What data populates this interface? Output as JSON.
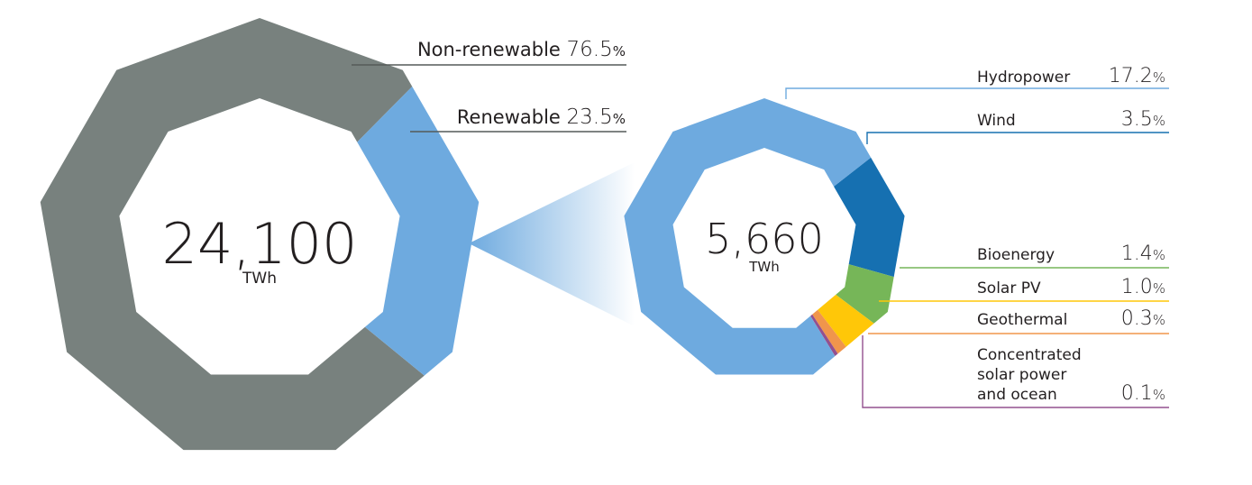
{
  "chart_data": [
    {
      "type": "pie",
      "center_value": "24,100",
      "center_unit": "TWh",
      "slices": [
        {
          "label": "Non-renewable",
          "value": 76.5,
          "value_text": "76.5",
          "unit": "%",
          "color": "#78817e"
        },
        {
          "label": "Renewable",
          "value": 23.5,
          "value_text": "23.5",
          "unit": "%",
          "color": "#6eaadf"
        }
      ]
    },
    {
      "type": "pie",
      "center_value": "5,660",
      "center_unit": "TWh",
      "slices": [
        {
          "label": "Hydropower",
          "value": 17.2,
          "value_text": "17.2",
          "unit": "%",
          "color": "#6eaadf"
        },
        {
          "label": "Wind",
          "value": 3.5,
          "value_text": "3.5",
          "unit": "%",
          "color": "#1670b1"
        },
        {
          "label": "Bioenergy",
          "value": 1.4,
          "value_text": "1.4",
          "unit": "%",
          "color": "#76b658"
        },
        {
          "label": "Solar PV",
          "value": 1.0,
          "value_text": "1.0",
          "unit": "%",
          "color": "#ffc708"
        },
        {
          "label": "Geothermal",
          "value": 0.3,
          "value_text": "0.3",
          "unit": "%",
          "color": "#f0954c"
        },
        {
          "label": "Concentrated solar power and ocean",
          "label_lines": [
            "Concentrated",
            "solar power",
            "and ocean"
          ],
          "value": 0.1,
          "value_text": "0.1",
          "unit": "%",
          "color": "#93508f"
        }
      ]
    }
  ]
}
